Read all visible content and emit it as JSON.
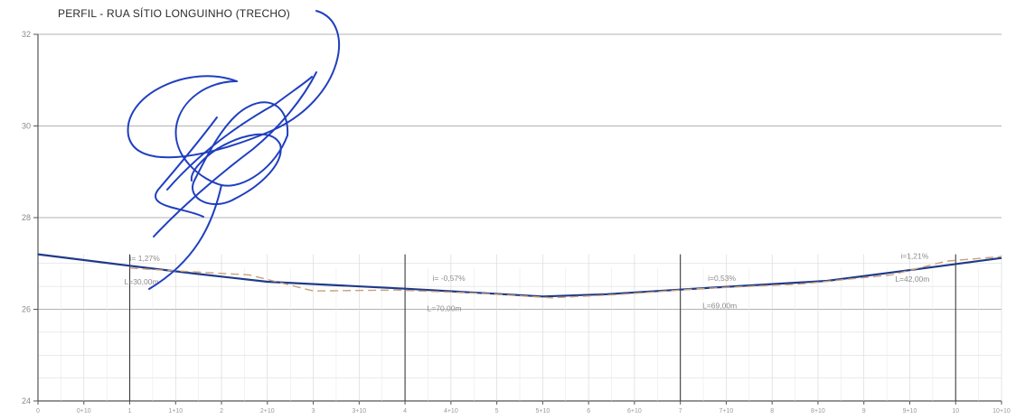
{
  "title": "PERFIL - RUA SÍTIO LONGUINHO (TRECHO)",
  "colors": {
    "profile_line": "#1f3a8a",
    "terrain_line": "#c8a078",
    "grid": "#d6d6d6",
    "major_grid": "#3a3a3a",
    "signature": "#1f3fbf"
  },
  "chart_data": {
    "type": "line",
    "title": "PERFIL - RUA SÍTIO LONGUINHO (TRECHO)",
    "xlabel": "",
    "ylabel": "",
    "xlim": [
      0,
      10.5
    ],
    "ylim": [
      24,
      32
    ],
    "y_ticks": [
      24,
      26,
      28,
      30,
      32
    ],
    "y_tick_labels": [
      "24",
      "26",
      "28",
      "30",
      "32"
    ],
    "x_ticks": [
      0,
      0.5,
      1,
      1.5,
      2,
      2.5,
      3,
      3.5,
      4,
      4.5,
      5,
      5.5,
      6,
      6.5,
      7,
      7.5,
      8,
      8.5,
      9,
      9.5,
      10,
      10.5
    ],
    "x_tick_labels": [
      "0",
      "0+10",
      "1",
      "1+10",
      "2",
      "2+10",
      "3",
      "3+10",
      "4",
      "4+10",
      "5",
      "5+10",
      "6",
      "6+10",
      "7",
      "7+10",
      "8",
      "8+10",
      "9",
      "9+10",
      "10",
      "10+10"
    ],
    "major_stations": [
      1,
      4,
      7,
      10
    ],
    "grid": true,
    "series": [
      {
        "x": [
          0,
          1,
          1.7,
          2.5,
          4,
          5.5,
          6.2,
          7,
          8.6,
          9.6,
          10.5
        ],
        "y": [
          27.2,
          26.95,
          26.78,
          26.6,
          26.45,
          26.28,
          26.33,
          26.43,
          26.62,
          26.88,
          27.12
        ]
      },
      {
        "x": [
          1,
          1.4,
          2.3,
          3.0,
          3.9,
          4.8,
          5.6,
          6.3,
          7.2,
          8.3,
          9.3,
          9.9,
          10.5
        ],
        "y": [
          26.9,
          26.85,
          26.75,
          26.4,
          26.42,
          26.35,
          26.25,
          26.32,
          26.45,
          26.55,
          26.75,
          27.05,
          27.15
        ]
      }
    ],
    "annotations": [
      {
        "i_label": "i= 1,27%",
        "l_label": "L=30,00m",
        "x": 1.0,
        "y_i": 27.05,
        "y_l": 26.58
      },
      {
        "i_label": "i= -0,57%",
        "l_label": "L=70,00m",
        "x": 4.3,
        "y_i": 26.62,
        "y_l": 26.0
      },
      {
        "i_label": "i=0,53%",
        "l_label": "L=69,00m",
        "x": 7.3,
        "y_i": 26.62,
        "y_l": 26.06
      },
      {
        "i_label": "i=1,21%",
        "l_label": "L=42,00m",
        "x": 9.4,
        "y_i": 27.1,
        "y_l": 26.64
      }
    ]
  }
}
